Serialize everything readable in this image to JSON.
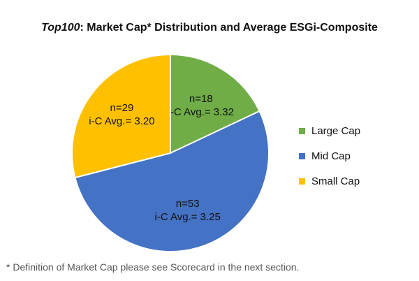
{
  "title": {
    "italic_part": "Top100",
    "rest": ": Market Cap* Distribution and Average ESGi-Composite"
  },
  "footnote": "* Definition of Market Cap please see Scorecard in the next section.",
  "chart_data": {
    "type": "pie",
    "title": "Top100: Market Cap* Distribution and Average ESGi-Composite",
    "legend_position": "right",
    "slices": [
      {
        "name": "Large Cap",
        "value": 18,
        "count_label": "n=18",
        "avg_label": "i-C Avg.= 3.32",
        "color": "#70ad47"
      },
      {
        "name": "Mid Cap",
        "value": 53,
        "count_label": "n=53",
        "avg_label": "i-C Avg.= 3.25",
        "color": "#4472c4"
      },
      {
        "name": "Small Cap",
        "value": 29,
        "count_label": "n=29",
        "avg_label": "i-C Avg.= 3.20",
        "color": "#ffc000"
      }
    ]
  }
}
